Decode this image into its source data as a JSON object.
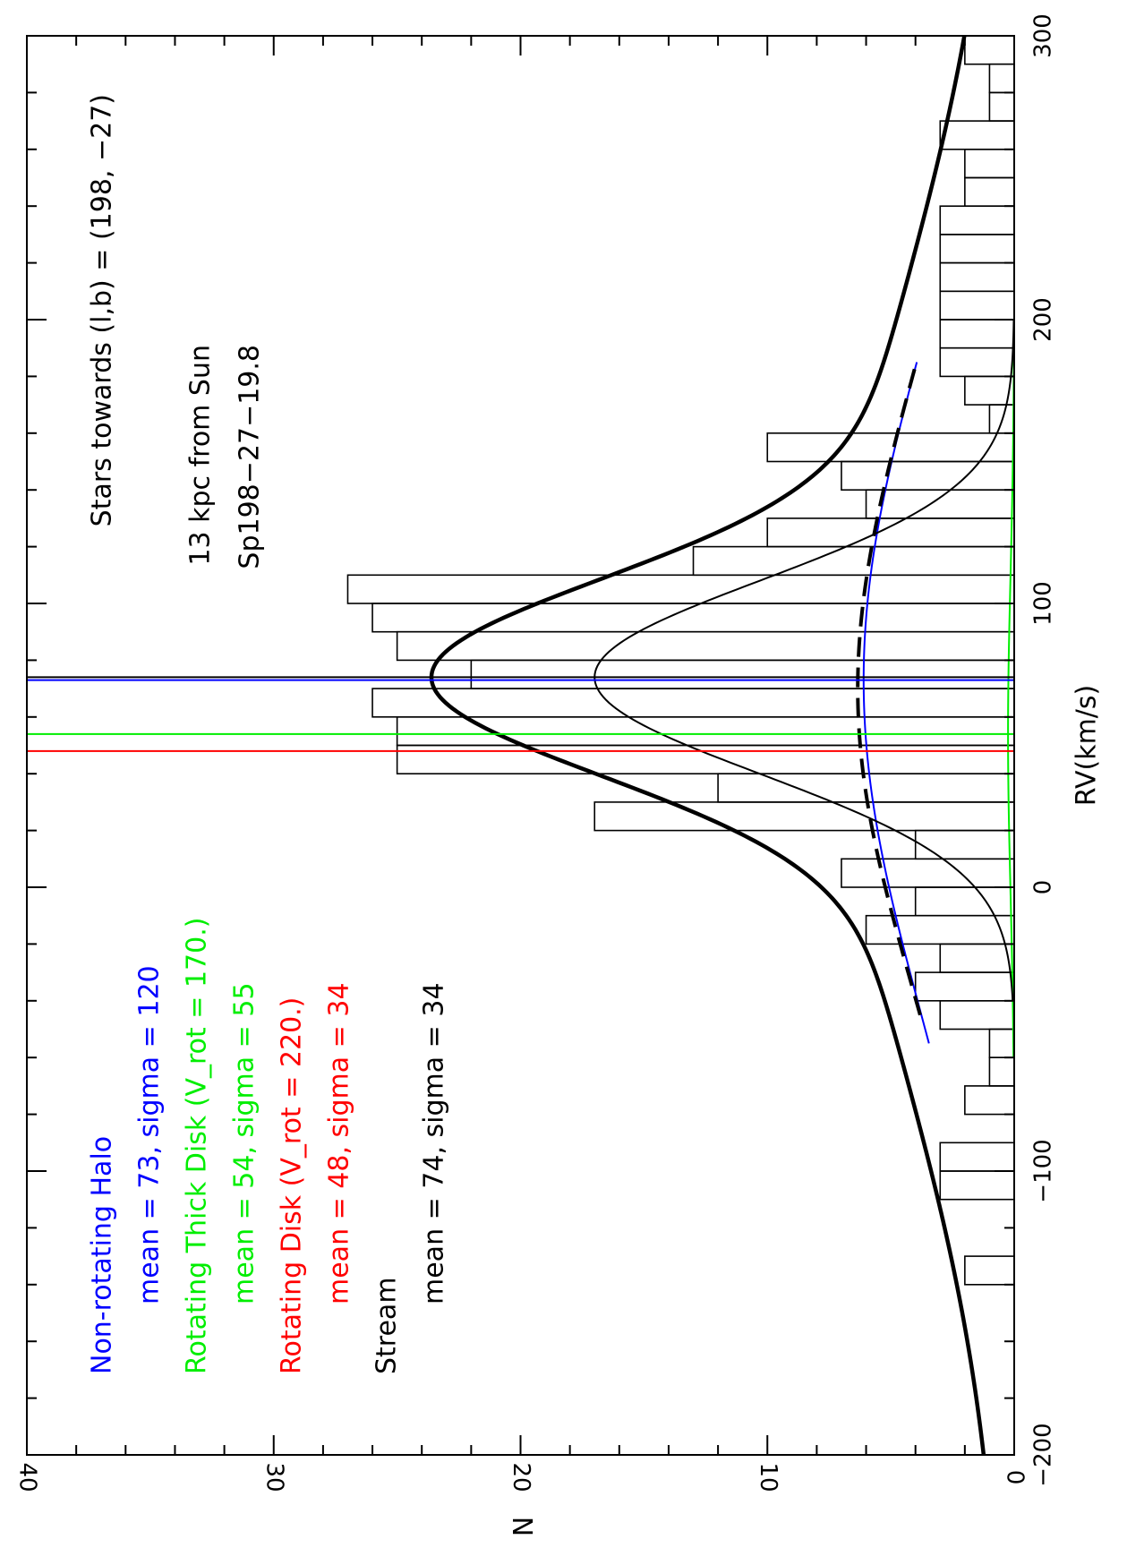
{
  "chart_data": {
    "type": "bar",
    "orientation": "rotated-90-clockwise",
    "xlabel": "RV(km/s)",
    "ylabel": "N",
    "xlim": [
      -200,
      300
    ],
    "ylim": [
      0,
      40
    ],
    "x_ticks": [
      "-200",
      "-100",
      "0",
      "100",
      "200",
      "300"
    ],
    "y_ticks": [
      "0",
      "10",
      "20",
      "30",
      "40"
    ],
    "grid": false,
    "histogram": {
      "bin_width": 10,
      "bin_starts": [
        -140,
        -110,
        -100,
        -80,
        -70,
        -60,
        -50,
        -40,
        -30,
        -20,
        -10,
        0,
        10,
        20,
        30,
        40,
        50,
        60,
        70,
        80,
        90,
        100,
        110,
        120,
        130,
        140,
        150,
        160,
        170,
        180,
        190,
        200,
        210,
        220,
        230,
        240,
        250,
        260,
        270,
        280,
        290
      ],
      "counts": [
        2,
        3,
        3,
        2,
        1,
        1,
        3,
        4,
        3,
        6,
        4,
        7,
        4,
        17,
        12,
        25,
        25,
        26,
        22,
        25,
        26,
        27,
        13,
        10,
        6,
        7,
        10,
        1,
        2,
        3,
        3,
        3,
        3,
        3,
        3,
        2,
        2,
        3,
        1,
        1,
        2
      ]
    },
    "components": [
      {
        "name": "Non-rotating Halo",
        "mean": 73,
        "sigma": 120,
        "color": "#0000ff",
        "amplitude": 6.1
      },
      {
        "name": "Rotating Thick Disk",
        "mean": 54,
        "sigma": 55,
        "color": "#00ee00",
        "amplitude": 0.25
      },
      {
        "name": "Rotating Disk",
        "mean": 48,
        "sigma": 34,
        "color": "#ff0000",
        "amplitude": 0.0
      },
      {
        "name": "Stream",
        "mean": 74,
        "sigma": 34,
        "color": "#000000",
        "amplitude": 17.0
      }
    ],
    "total_peak": 23.4,
    "annotations": {
      "line1": "Stars towards (l,b) = (198, −27)",
      "line2": "13 kpc from Sun",
      "line3": "Sp198−27−19.8"
    },
    "legend": [
      {
        "text": "Non-rotating Halo",
        "color": "#0000ff",
        "indent": false
      },
      {
        "text": "mean = 73, sigma = 120",
        "color": "#0000ff",
        "indent": true
      },
      {
        "text": "Rotating Thick Disk (V_rot = 170.)",
        "color": "#00ee00",
        "indent": false
      },
      {
        "text": "mean = 54, sigma = 55",
        "color": "#00ee00",
        "indent": true
      },
      {
        "text": "Rotating Disk (V_rot = 220.)",
        "color": "#ff0000",
        "indent": false
      },
      {
        "text": "mean = 48, sigma = 34",
        "color": "#ff0000",
        "indent": true
      },
      {
        "text": "Stream",
        "color": "#000000",
        "indent": false
      },
      {
        "text": "mean = 74, sigma = 34",
        "color": "#000000",
        "indent": true
      }
    ],
    "legend_placement": "bottom-left"
  }
}
